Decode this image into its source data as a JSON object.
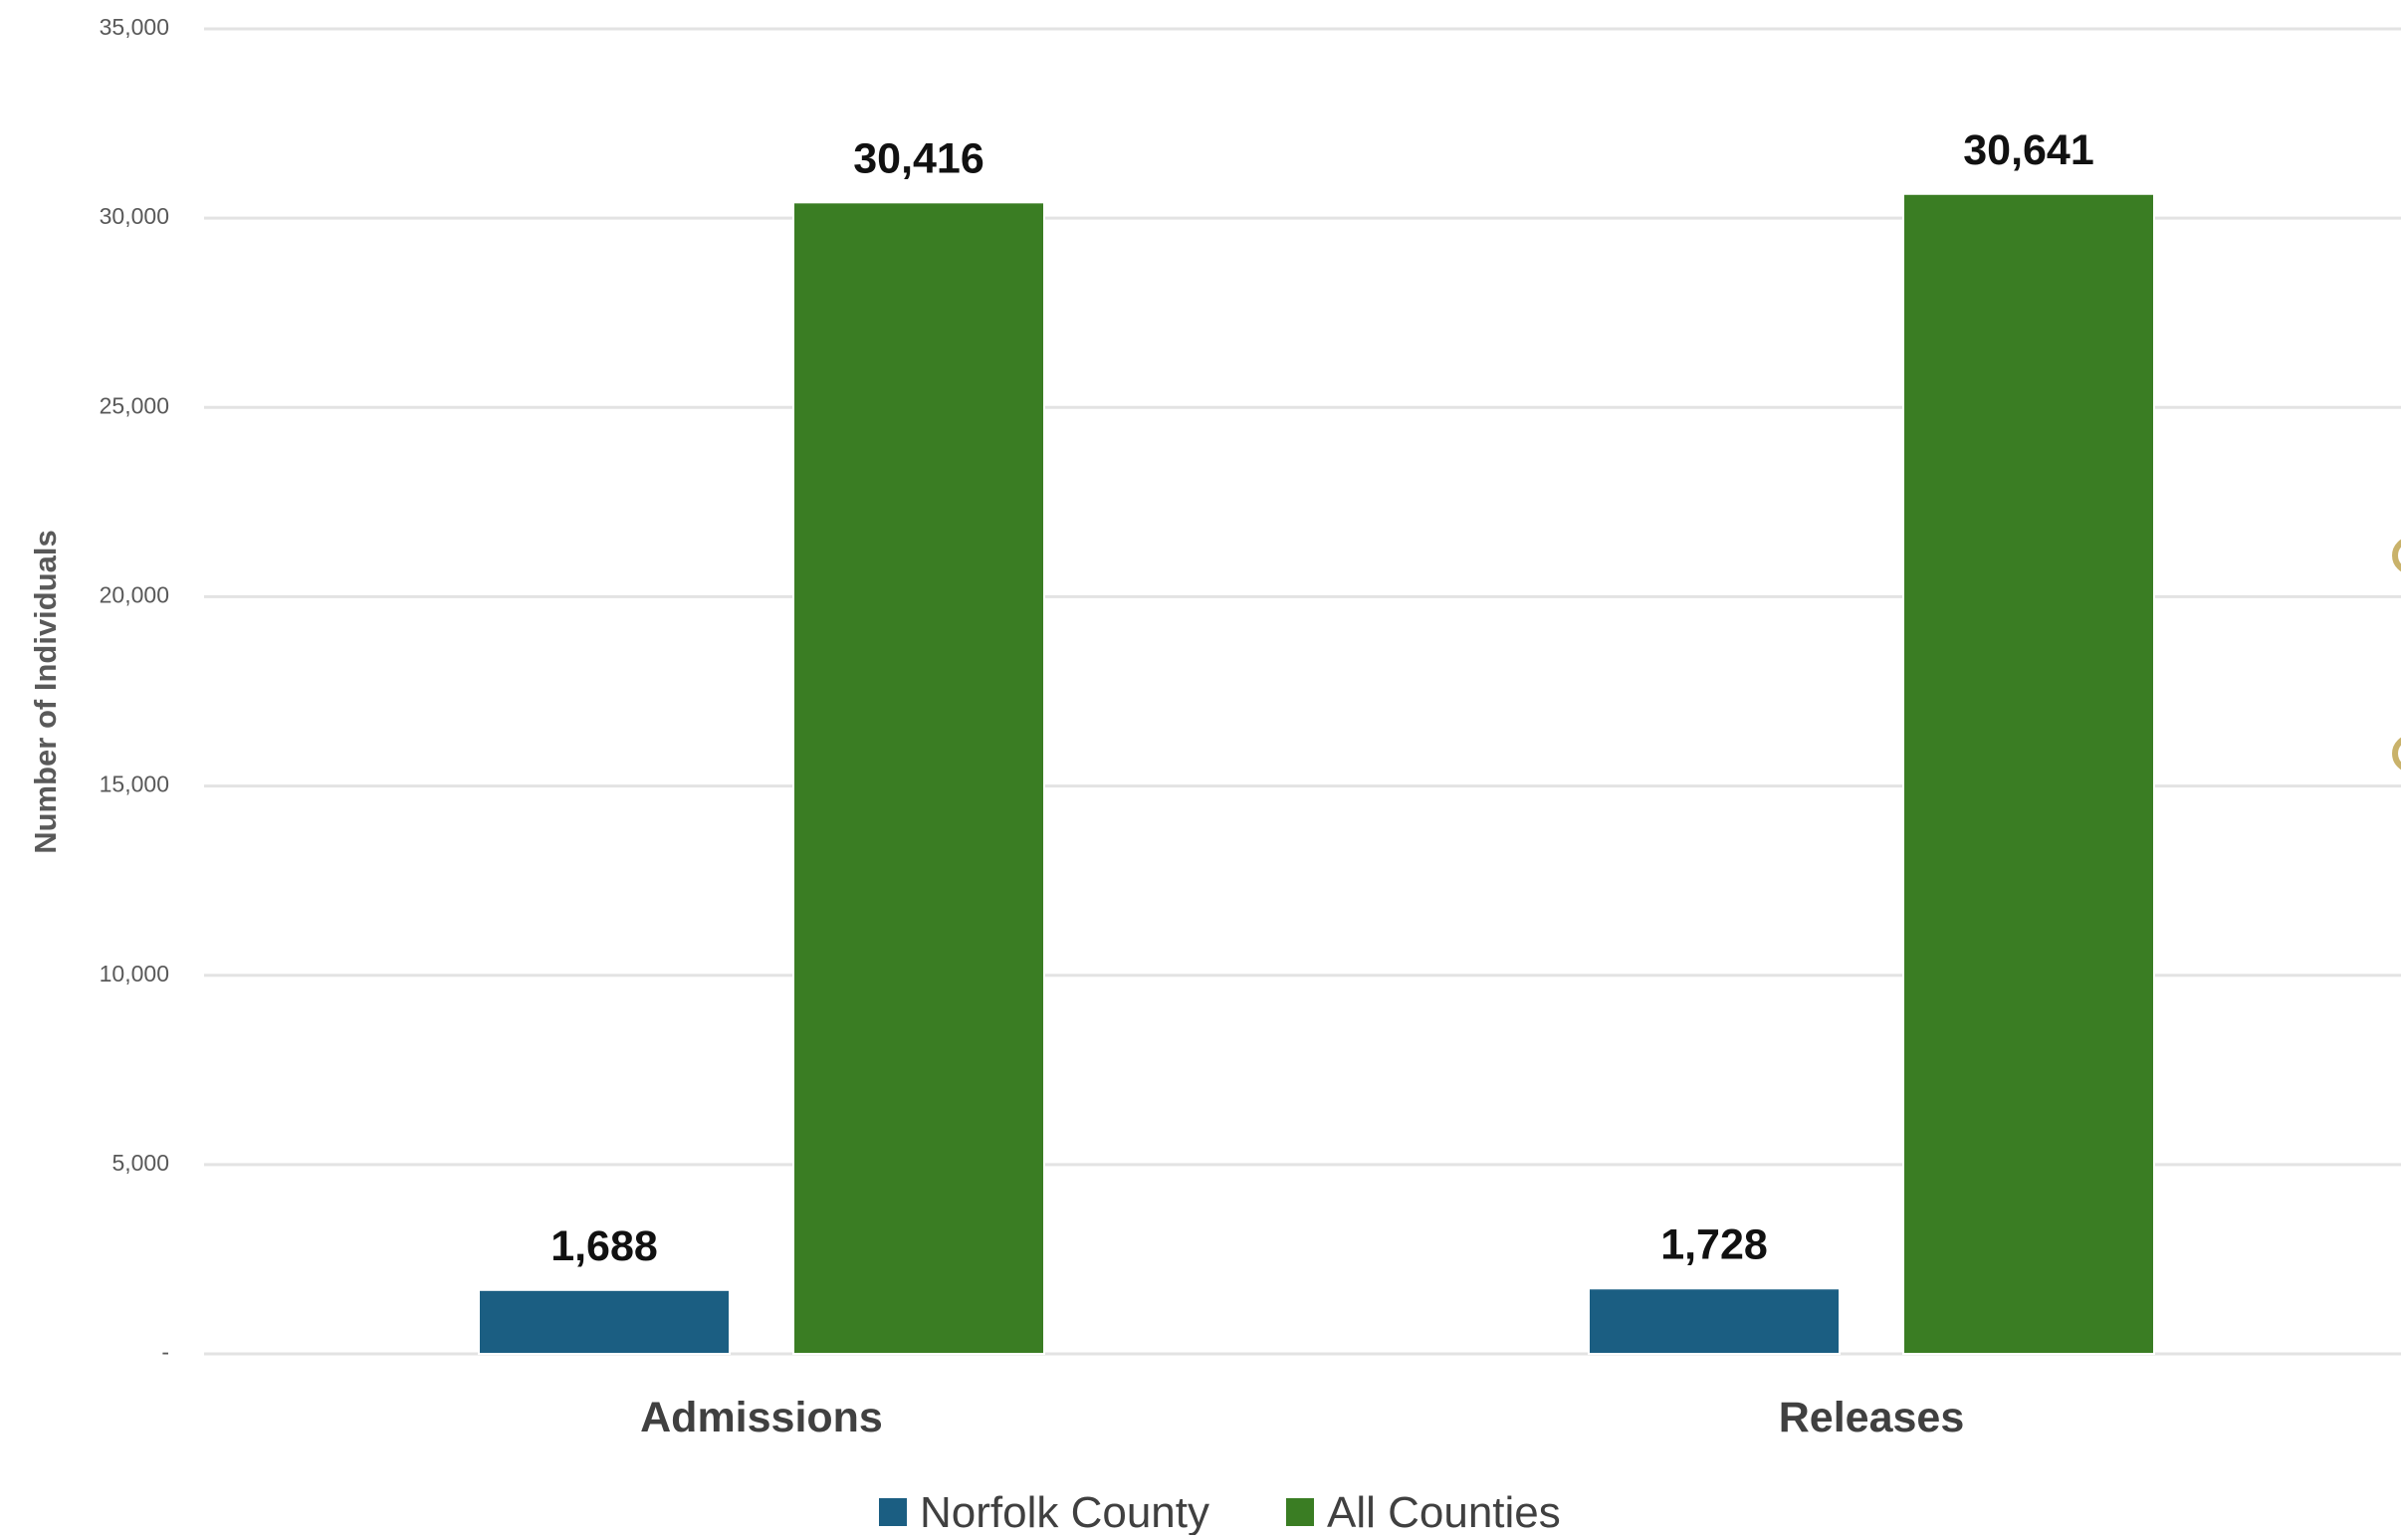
{
  "chart_data": {
    "type": "bar",
    "categories": [
      "Admissions",
      "Releases"
    ],
    "series": [
      {
        "name": "Norfolk County",
        "values": [
          1688,
          1728
        ],
        "labels": [
          "1,688",
          "1,728"
        ],
        "color": "#1b5e82"
      },
      {
        "name": "All Counties",
        "values": [
          30416,
          30641
        ],
        "labels": [
          "30,416",
          "30,641"
        ],
        "color": "#3a7d23"
      }
    ],
    "ylabel": "Number of Individuals",
    "xlabel": "",
    "ylim": [
      0,
      35000
    ],
    "yticks": [
      0,
      5000,
      10000,
      15000,
      20000,
      25000,
      30000,
      35000
    ],
    "ytick_labels": [
      "-",
      "5,000",
      "10,000",
      "15,000",
      "20,000",
      "25,000",
      "30,000",
      "35,000"
    ],
    "grid": true,
    "legend_position": "bottom",
    "gridline_color": "#e3e3e3",
    "marker_color": "#c9b26a"
  }
}
